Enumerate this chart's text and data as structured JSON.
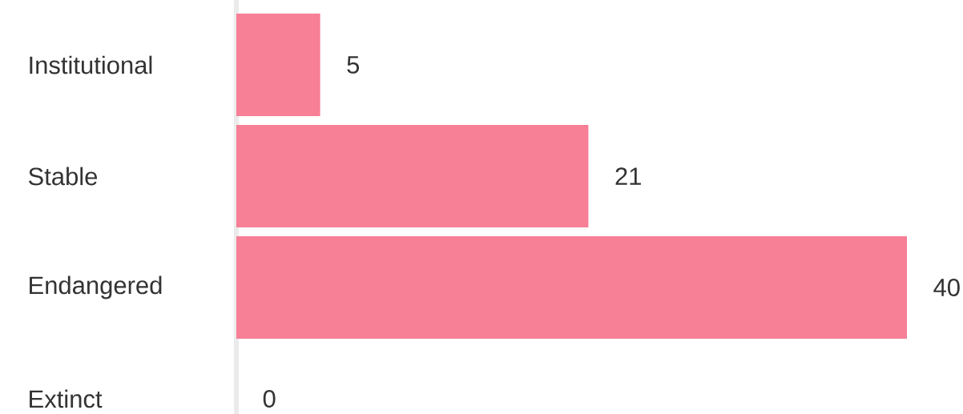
{
  "chart_data": {
    "type": "bar",
    "orientation": "horizontal",
    "categories": [
      "Institutional",
      "Stable",
      "Endangered",
      "Extinct"
    ],
    "values": [
      5,
      21,
      40,
      0
    ],
    "color": "#f77f96",
    "data_labels": true
  }
}
